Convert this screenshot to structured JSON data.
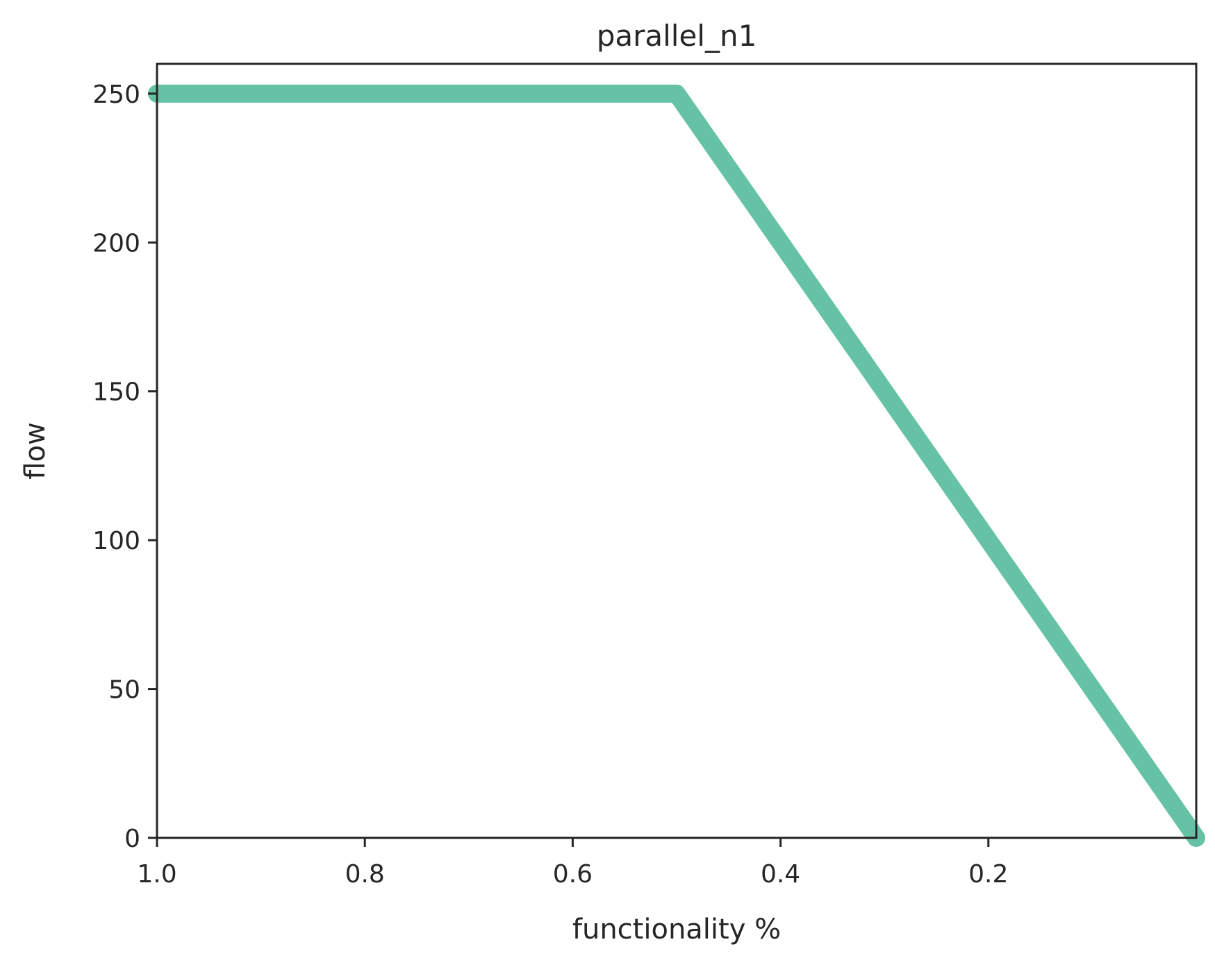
{
  "chart_data": {
    "type": "line",
    "title": "parallel_n1",
    "xlabel": "functionality %",
    "ylabel": "flow",
    "xlim": [
      1.0,
      0.0
    ],
    "ylim": [
      0,
      260
    ],
    "x_inverted": true,
    "xticks": [
      1.0,
      0.8,
      0.6,
      0.4,
      0.2
    ],
    "xtick_labels": [
      "1.0",
      "0.8",
      "0.6",
      "0.4",
      "0.2"
    ],
    "yticks": [
      0,
      50,
      100,
      150,
      200,
      250
    ],
    "ytick_labels": [
      "0",
      "50",
      "100",
      "150",
      "200",
      "250"
    ],
    "grid": false,
    "legend": "none",
    "series": [
      {
        "color": "#66c2a5",
        "x": [
          1.0,
          0.5,
          0.0
        ],
        "y": [
          250,
          250,
          0
        ]
      }
    ]
  }
}
